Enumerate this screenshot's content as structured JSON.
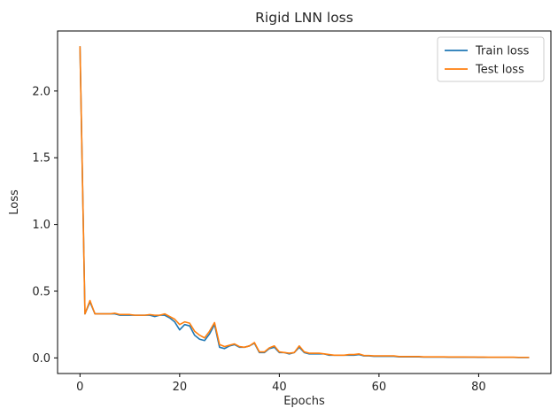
{
  "chart_data": {
    "type": "line",
    "title": "Rigid LNN loss",
    "xlabel": "Epochs",
    "ylabel": "Loss",
    "xlim": [
      -4.5,
      94.5
    ],
    "ylim": [
      -0.117,
      2.45
    ],
    "xticks": [
      0,
      20,
      40,
      60,
      80
    ],
    "yticks": [
      0.0,
      0.5,
      1.0,
      1.5,
      2.0,
      2.5
    ],
    "ytick_labels": [
      "0.0",
      "0.5",
      "1.0",
      "1.5",
      "2.0"
    ],
    "grid": false,
    "legend_position": "top-right",
    "x": [
      0,
      1,
      2,
      3,
      4,
      5,
      6,
      7,
      8,
      9,
      10,
      11,
      12,
      13,
      14,
      15,
      16,
      17,
      18,
      19,
      20,
      21,
      22,
      23,
      24,
      25,
      26,
      27,
      28,
      29,
      30,
      31,
      32,
      33,
      34,
      35,
      36,
      37,
      38,
      39,
      40,
      41,
      42,
      43,
      44,
      45,
      46,
      47,
      48,
      49,
      50,
      51,
      52,
      53,
      54,
      55,
      56,
      57,
      58,
      59,
      60,
      61,
      62,
      63,
      64,
      65,
      66,
      67,
      68,
      69,
      70,
      71,
      72,
      73,
      74,
      75,
      76,
      77,
      78,
      79,
      80,
      81,
      82,
      83,
      84,
      85,
      86,
      87,
      88,
      89,
      90
    ],
    "series": [
      {
        "name": "Train loss",
        "color": "#1f77b4",
        "values": [
          2.33,
          0.33,
          0.42,
          0.33,
          0.33,
          0.33,
          0.33,
          0.33,
          0.32,
          0.32,
          0.32,
          0.32,
          0.32,
          0.32,
          0.32,
          0.31,
          0.32,
          0.32,
          0.3,
          0.27,
          0.21,
          0.25,
          0.24,
          0.17,
          0.14,
          0.13,
          0.18,
          0.25,
          0.08,
          0.07,
          0.09,
          0.1,
          0.08,
          0.08,
          0.09,
          0.11,
          0.04,
          0.04,
          0.07,
          0.08,
          0.04,
          0.04,
          0.03,
          0.04,
          0.08,
          0.04,
          0.03,
          0.03,
          0.03,
          0.03,
          0.02,
          0.02,
          0.02,
          0.02,
          0.02,
          0.02,
          0.025,
          0.015,
          0.015,
          0.012,
          0.012,
          0.012,
          0.012,
          0.012,
          0.008,
          0.008,
          0.008,
          0.008,
          0.008,
          0.006,
          0.006,
          0.006,
          0.006,
          0.006,
          0.005,
          0.005,
          0.005,
          0.005,
          0.005,
          0.005,
          0.004,
          0.004,
          0.004,
          0.004,
          0.004,
          0.004,
          0.004,
          0.004,
          0.003,
          0.003,
          0.003
        ]
      },
      {
        "name": "Test loss",
        "color": "#ff7f0e",
        "values": [
          2.33,
          0.33,
          0.43,
          0.33,
          0.33,
          0.33,
          0.33,
          0.335,
          0.325,
          0.325,
          0.325,
          0.32,
          0.32,
          0.32,
          0.325,
          0.32,
          0.32,
          0.33,
          0.31,
          0.29,
          0.25,
          0.27,
          0.26,
          0.2,
          0.17,
          0.15,
          0.2,
          0.265,
          0.1,
          0.085,
          0.095,
          0.105,
          0.085,
          0.08,
          0.09,
          0.115,
          0.045,
          0.045,
          0.075,
          0.09,
          0.045,
          0.04,
          0.035,
          0.04,
          0.09,
          0.045,
          0.035,
          0.035,
          0.035,
          0.03,
          0.025,
          0.02,
          0.02,
          0.02,
          0.025,
          0.025,
          0.03,
          0.018,
          0.018,
          0.015,
          0.015,
          0.015,
          0.015,
          0.015,
          0.01,
          0.01,
          0.01,
          0.01,
          0.01,
          0.008,
          0.008,
          0.008,
          0.008,
          0.008,
          0.007,
          0.007,
          0.007,
          0.007,
          0.006,
          0.006,
          0.006,
          0.006,
          0.005,
          0.005,
          0.005,
          0.005,
          0.005,
          0.005,
          0.004,
          0.004,
          0.004
        ]
      }
    ]
  }
}
